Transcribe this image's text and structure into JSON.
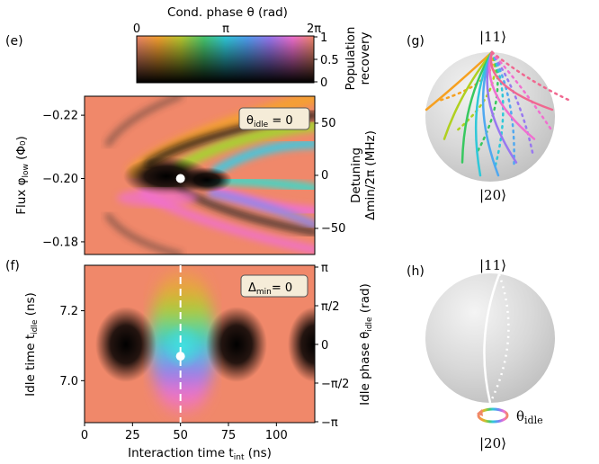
{
  "figure": {
    "panels": {
      "e": "(e)",
      "f": "(f)",
      "g": "(g)",
      "h": "(h)"
    }
  },
  "colorbar": {
    "title": "Cond. phase θ (rad)",
    "x_ticks": [
      "0",
      "π",
      "2π"
    ],
    "y_ticks": [
      "1",
      "0.5",
      "0"
    ],
    "y_label_1": "Population",
    "y_label_2": "recovery"
  },
  "chart_data": [
    {
      "panel": "(e)",
      "type": "heatmap",
      "ylabel": "Flux φ_low (Φ₀)",
      "ylabel_main": "Flux φ",
      "ylabel_sub": "low",
      "ylabel_unit": " (Φ₀)",
      "y_ticks": [
        "−0.22",
        "−0.20",
        "−0.18"
      ],
      "y_values": [
        -0.22,
        -0.2,
        -0.18
      ],
      "ylim": [
        -0.176,
        -0.226
      ],
      "right_ylabel_1": "Detuning",
      "right_ylabel_2": "Δmin/2π (MHz)",
      "right_ticks": [
        "50",
        "0",
        "−50"
      ],
      "annotation": "θidle = 0",
      "annotation_main": "θ",
      "annotation_sub": "idle",
      "annotation_rest": " = 0",
      "marker": {
        "x": 50,
        "y": -0.2
      }
    },
    {
      "panel": "(f)",
      "type": "heatmap",
      "xlabel": "Interaction time t_int (ns)",
      "xlabel_main": "Interaction time t",
      "xlabel_sub": "int",
      "xlabel_unit": " (ns)",
      "x_ticks": [
        "0",
        "25",
        "50",
        "75",
        "100"
      ],
      "x_values": [
        0,
        25,
        50,
        75,
        100
      ],
      "xlim": [
        0,
        120
      ],
      "ylabel_main": "Idle time t",
      "ylabel_sub": "idle",
      "ylabel_unit": " (ns)",
      "y_ticks": [
        "7.2",
        "7.0"
      ],
      "y_values": [
        7.2,
        7.0
      ],
      "ylim": [
        6.88,
        7.33
      ],
      "right_ylabel_1": "Idle phase θ",
      "right_ylabel_sub": "idle",
      "right_ylabel_unit": " (rad)",
      "right_ticks": [
        "π",
        "π/2",
        "0",
        "−π/2",
        "−π"
      ],
      "annotation_main": "Δ",
      "annotation_sub": "min",
      "annotation_rest": "= 0",
      "marker": {
        "x": 50,
        "y": 7.07
      },
      "dashed_line_x": 50
    }
  ],
  "spheres": {
    "g_top": "|11⟩",
    "g_bottom": "|20⟩",
    "h_top": "|11⟩",
    "h_bottom": "|20⟩",
    "h_label_main": "θ",
    "h_label_sub": "idle"
  },
  "colors": {
    "background": "#f08a6a",
    "trajectories": [
      "#f6a020",
      "#b0d020",
      "#38c860",
      "#30c8d8",
      "#50a8f0",
      "#9878f0",
      "#f070d0",
      "#f06890"
    ]
  }
}
